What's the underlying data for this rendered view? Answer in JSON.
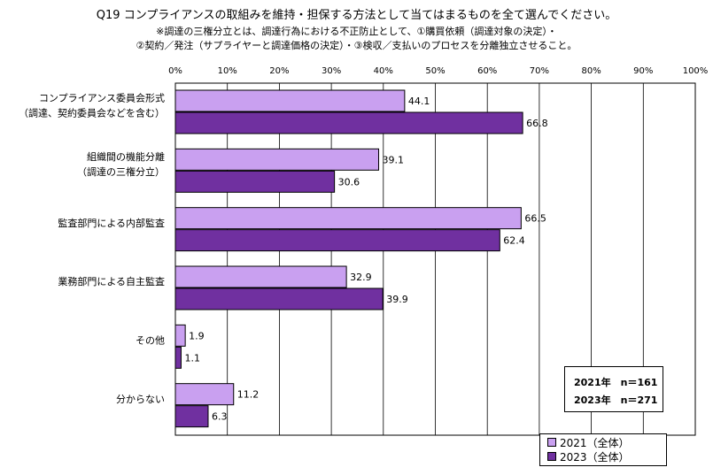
{
  "chart_data": {
    "type": "bar",
    "orientation": "horizontal",
    "title": "Q19  コンプライアンスの取組みを維持・担保する方法として当てはまるものを全て選んでください。",
    "subtitle_lines": [
      "※調達の三権分立とは、調達行為における不正防止として、①購買依頼（調達対象の決定）・",
      "②契約／発注（サプライヤーと調達価格の決定）・③検収／支払いのプロセスを分離独立させること。"
    ],
    "categories": [
      [
        "コンプライアンス委員会形式",
        "（調達、契約委員会などを含む）"
      ],
      [
        "組織間の機能分離",
        "（調達の三権分立）"
      ],
      [
        "監査部門による内部監査"
      ],
      [
        "業務部門による自主監査"
      ],
      [
        "その他"
      ],
      [
        "分からない"
      ]
    ],
    "series": [
      {
        "name": "2021（全体）",
        "color": "#c9a0f0",
        "values": [
          44.1,
          39.1,
          66.5,
          32.9,
          1.9,
          11.2
        ]
      },
      {
        "name": "2023（全体）",
        "color": "#7030a0",
        "values": [
          66.8,
          30.6,
          62.4,
          39.9,
          1.1,
          6.3
        ]
      }
    ],
    "xlim": [
      0,
      100
    ],
    "xticks": [
      "0%",
      "10%",
      "20%",
      "30%",
      "40%",
      "50%",
      "60%",
      "70%",
      "80%",
      "90%",
      "100%"
    ],
    "grid": true,
    "legend_position": "bottom-right",
    "sample_sizes": [
      "2021年　n＝161",
      "2023年　n＝271"
    ]
  }
}
